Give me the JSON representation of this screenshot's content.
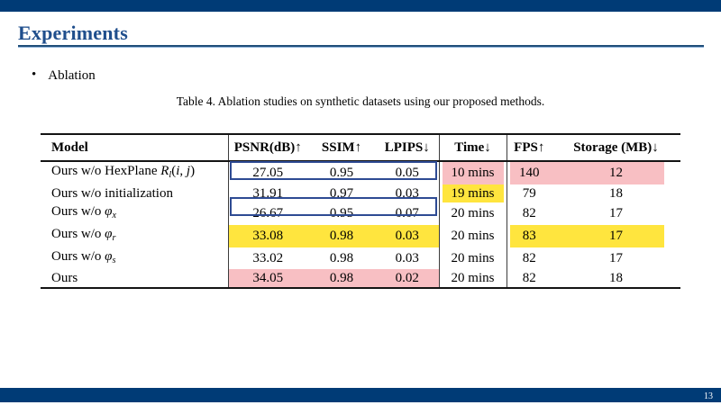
{
  "header": {
    "title": "Experiments"
  },
  "bullet": {
    "marker": "•",
    "label": "Ablation"
  },
  "footer": {
    "page_number": "13"
  },
  "colors": {
    "bar_navy": "#003B76",
    "title_blue": "#1F4E8C",
    "highlight_pink": "#F8BFC3",
    "highlight_yellow": "#FFE53E",
    "box_border_navy": "#2E4B93"
  },
  "table": {
    "caption": "Table 4. Ablation studies on synthetic datasets using our proposed methods.",
    "columns": [
      {
        "key": "model",
        "label": "Model"
      },
      {
        "key": "psnr",
        "label": "PSNR(dB)↑"
      },
      {
        "key": "ssim",
        "label": "SSIM↑"
      },
      {
        "key": "lpips",
        "label": "LPIPS↓"
      },
      {
        "key": "time",
        "label": "Time↓"
      },
      {
        "key": "fps",
        "label": "FPS↑"
      },
      {
        "key": "storage",
        "label": "Storage (MB)↓"
      }
    ],
    "rows": [
      {
        "model": [
          {
            "t": "Ours w/o HexPlane "
          },
          {
            "t": "R",
            "italic": true
          },
          {
            "t": "l",
            "italic": true,
            "sub": true
          },
          {
            "t": "("
          },
          {
            "t": "i",
            "italic": true
          },
          {
            "t": ", "
          },
          {
            "t": "j",
            "italic": true
          },
          {
            "t": ")"
          }
        ],
        "psnr": "27.05",
        "ssim": "0.95",
        "lpips": "0.05",
        "time": "10 mins",
        "fps": "140",
        "storage": "12",
        "boxed": true,
        "highlights": {
          "time": "pink",
          "fps": "pink",
          "storage": "pink"
        }
      },
      {
        "model": [
          {
            "t": "Ours w/o initialization"
          }
        ],
        "psnr": "31.91",
        "ssim": "0.97",
        "lpips": "0.03",
        "time": "19 mins",
        "fps": "79",
        "storage": "18",
        "boxed": false,
        "highlights": {
          "time": "yellow"
        }
      },
      {
        "model": [
          {
            "t": "Ours w/o "
          },
          {
            "t": "φ",
            "italic": true
          },
          {
            "t": "x",
            "italic": true,
            "sub": true
          }
        ],
        "psnr": "26.67",
        "ssim": "0.95",
        "lpips": "0.07",
        "time": "20 mins",
        "fps": "82",
        "storage": "17",
        "boxed": true,
        "highlights": {}
      },
      {
        "model": [
          {
            "t": "Ours w/o "
          },
          {
            "t": "φ",
            "italic": true
          },
          {
            "t": "r",
            "italic": true,
            "sub": true
          }
        ],
        "psnr": "33.08",
        "ssim": "0.98",
        "lpips": "0.03",
        "time": "20 mins",
        "fps": "83",
        "storage": "17",
        "boxed": false,
        "highlights": {
          "psnr": "yellow",
          "ssim": "yellow",
          "lpips": "yellow",
          "fps": "yellow",
          "storage": "yellow"
        }
      },
      {
        "model": [
          {
            "t": "Ours w/o "
          },
          {
            "t": "φ",
            "italic": true
          },
          {
            "t": "s",
            "italic": true,
            "sub": true
          }
        ],
        "psnr": "33.02",
        "ssim": "0.98",
        "lpips": "0.03",
        "time": "20 mins",
        "fps": "82",
        "storage": "17",
        "boxed": false,
        "highlights": {}
      },
      {
        "model": [
          {
            "t": "Ours"
          }
        ],
        "psnr": "34.05",
        "ssim": "0.98",
        "lpips": "0.02",
        "time": "20 mins",
        "fps": "82",
        "storage": "18",
        "boxed": false,
        "highlights": {
          "psnr": "pink",
          "ssim": "pink",
          "lpips": "pink"
        }
      }
    ]
  }
}
